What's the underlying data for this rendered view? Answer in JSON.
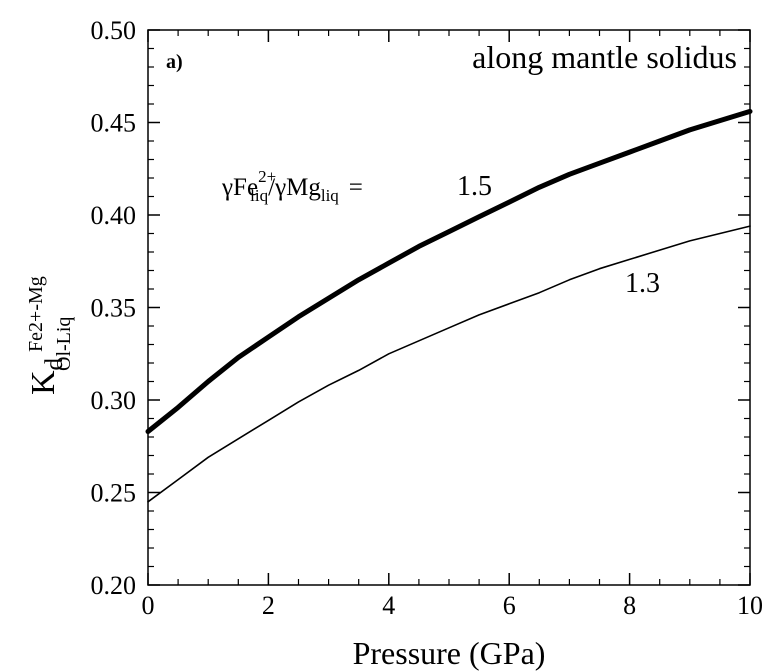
{
  "chart_data": {
    "type": "line",
    "panel_label": "a)",
    "annotation": "along mantle solidus",
    "xlabel": "Pressure (GPa)",
    "ylabel": {
      "main": "K",
      "sub": "d",
      "superscript": "Fe2+-Mg",
      "subscript": "Ol-Liq"
    },
    "xlim": [
      0,
      10
    ],
    "ylim": [
      0.2,
      0.5
    ],
    "x_ticks": [
      0,
      2,
      4,
      6,
      8,
      10
    ],
    "x_tick_labels": [
      "0",
      "2",
      "4",
      "6",
      "8",
      "10"
    ],
    "y_ticks": [
      0.2,
      0.25,
      0.3,
      0.35,
      0.4,
      0.45,
      0.5
    ],
    "y_tick_labels": [
      "0.20",
      "0.25",
      "0.30",
      "0.35",
      "0.40",
      "0.45",
      "0.50"
    ],
    "grid": false,
    "series_label_expression": {
      "gamma1": "γFe",
      "sup1": "2+",
      "sub1": "liq",
      "slash": "/",
      "gamma2": "γMg",
      "sub2": "liq",
      "equals": "="
    },
    "series": [
      {
        "label": "1.5",
        "line_weight": "thick",
        "x": [
          0,
          0.5,
          1,
          1.5,
          2,
          2.5,
          3,
          3.5,
          4,
          4.5,
          5,
          5.5,
          6,
          6.5,
          7,
          7.5,
          8,
          8.5,
          9,
          9.5,
          10
        ],
        "y": [
          0.283,
          0.296,
          0.31,
          0.323,
          0.334,
          0.345,
          0.355,
          0.365,
          0.374,
          0.383,
          0.391,
          0.399,
          0.407,
          0.415,
          0.422,
          0.428,
          0.434,
          0.44,
          0.446,
          0.451,
          0.456
        ]
      },
      {
        "label": "1.3",
        "line_weight": "thin",
        "x": [
          0,
          0.5,
          1,
          1.5,
          2,
          2.5,
          3,
          3.5,
          4,
          4.5,
          5,
          5.5,
          6,
          6.5,
          7,
          7.5,
          8,
          8.5,
          9,
          9.5,
          10
        ],
        "y": [
          0.245,
          0.257,
          0.269,
          0.279,
          0.289,
          0.299,
          0.308,
          0.316,
          0.325,
          0.332,
          0.339,
          0.346,
          0.352,
          0.358,
          0.365,
          0.371,
          0.376,
          0.381,
          0.386,
          0.39,
          0.394
        ]
      }
    ]
  }
}
